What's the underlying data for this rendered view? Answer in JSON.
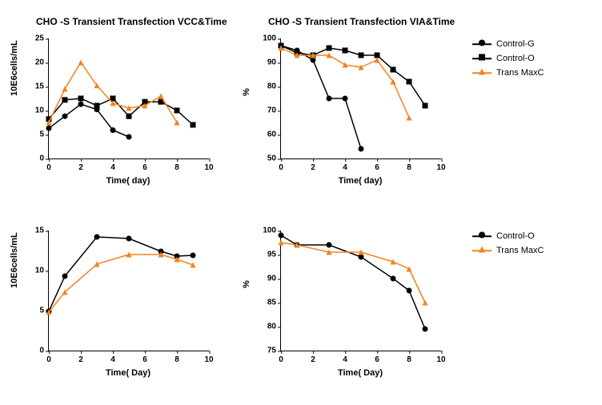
{
  "colors": {
    "black": "#000000",
    "orange": "#f58220"
  },
  "legends": {
    "top": [
      {
        "key": "controlG",
        "label": "Control-G",
        "color": "#000000",
        "marker": "circle"
      },
      {
        "key": "controlO",
        "label": "Control-O",
        "color": "#000000",
        "marker": "square"
      },
      {
        "key": "transMaxC",
        "label": "Trans MaxC",
        "color": "#f58220",
        "marker": "triangle"
      }
    ],
    "bottom": [
      {
        "key": "controlO",
        "label": "Control-O",
        "color": "#000000",
        "marker": "circle"
      },
      {
        "key": "transMaxC",
        "label": "Trans MaxC",
        "color": "#f58220",
        "marker": "triangle"
      }
    ]
  },
  "panels": {
    "tl": {
      "title": "CHO -S Transient Transfection VCC&Time",
      "xlabel": "Time( day)",
      "ylabel": "10E6cells/mL",
      "xlim": [
        0,
        10
      ],
      "ylim": [
        0,
        25
      ],
      "xticks": [
        0,
        2,
        4,
        6,
        8,
        10
      ],
      "yticks": [
        0,
        5,
        10,
        15,
        20,
        25
      ],
      "series": [
        {
          "key": "controlG",
          "color": "#000000",
          "marker": "circle",
          "x": [
            0,
            1,
            2,
            3,
            4,
            5
          ],
          "y": [
            6.3,
            8.8,
            11.3,
            10.2,
            5.9,
            4.5
          ]
        },
        {
          "key": "controlO",
          "color": "#000000",
          "marker": "square",
          "x": [
            0,
            1,
            2,
            3,
            4,
            5,
            6,
            7,
            8,
            9
          ],
          "y": [
            8.2,
            12.2,
            12.5,
            11.0,
            12.5,
            8.8,
            11.8,
            11.8,
            10.0,
            7.0
          ]
        },
        {
          "key": "transMaxC",
          "color": "#f58220",
          "marker": "triangle",
          "x": [
            0,
            1,
            2,
            3,
            4,
            5,
            6,
            7,
            8
          ],
          "y": [
            7.5,
            14.5,
            20.0,
            15.2,
            11.5,
            10.5,
            11.0,
            13.0,
            7.5
          ]
        }
      ]
    },
    "tr": {
      "title": "CHO -S Transient Transfection VIA&Time",
      "xlabel": "Time( day)",
      "ylabel": "%",
      "xlim": [
        0,
        10
      ],
      "ylim": [
        50,
        100
      ],
      "xticks": [
        0,
        2,
        4,
        6,
        8,
        10
      ],
      "yticks": [
        50,
        60,
        70,
        80,
        90,
        100
      ],
      "series": [
        {
          "key": "controlG",
          "color": "#000000",
          "marker": "circle",
          "x": [
            0,
            1,
            2,
            3,
            4,
            5
          ],
          "y": [
            97,
            95,
            91,
            75,
            75,
            54
          ]
        },
        {
          "key": "controlO",
          "color": "#000000",
          "marker": "square",
          "x": [
            0,
            1,
            2,
            3,
            4,
            5,
            6,
            7,
            8,
            9
          ],
          "y": [
            97,
            94,
            93,
            96,
            95,
            93,
            93,
            87,
            82,
            72
          ]
        },
        {
          "key": "transMaxC",
          "color": "#f58220",
          "marker": "triangle",
          "x": [
            0,
            1,
            2,
            3,
            4,
            5,
            6,
            7,
            8
          ],
          "y": [
            96,
            93,
            93,
            93,
            89,
            88,
            91,
            82,
            67
          ]
        }
      ]
    },
    "bl": {
      "title": "",
      "xlabel": "Time( Day)",
      "ylabel": "10E6cells/mL",
      "xlim": [
        0,
        10
      ],
      "ylim": [
        0,
        15
      ],
      "xticks": [
        0,
        2,
        4,
        6,
        8,
        10
      ],
      "yticks": [
        0,
        5,
        10,
        15
      ],
      "series": [
        {
          "key": "controlO",
          "color": "#000000",
          "marker": "circle",
          "x": [
            0,
            1,
            3,
            5,
            7,
            8,
            9
          ],
          "y": [
            4.9,
            9.3,
            14.2,
            14.0,
            12.4,
            11.8,
            11.9
          ]
        },
        {
          "key": "transMaxC",
          "color": "#f58220",
          "marker": "triangle",
          "x": [
            0,
            1,
            3,
            5,
            7,
            8,
            9
          ],
          "y": [
            4.8,
            7.3,
            10.8,
            12.0,
            12.0,
            11.4,
            10.7
          ]
        }
      ]
    },
    "br": {
      "title": "",
      "xlabel": "Time( Day)",
      "ylabel": "%",
      "xlim": [
        0,
        10
      ],
      "ylim": [
        75,
        100
      ],
      "xticks": [
        0,
        2,
        4,
        6,
        8,
        10
      ],
      "yticks": [
        75,
        80,
        85,
        90,
        95,
        100
      ],
      "series": [
        {
          "key": "controlO",
          "color": "#000000",
          "marker": "circle",
          "x": [
            0,
            1,
            3,
            5,
            7,
            8,
            9
          ],
          "y": [
            99,
            97,
            97,
            94.5,
            90,
            87.5,
            79.5
          ]
        },
        {
          "key": "transMaxC",
          "color": "#f58220",
          "marker": "triangle",
          "x": [
            0,
            1,
            3,
            5,
            7,
            8,
            9
          ],
          "y": [
            97.5,
            97,
            95.5,
            95.5,
            93.5,
            92,
            85
          ]
        }
      ]
    }
  }
}
